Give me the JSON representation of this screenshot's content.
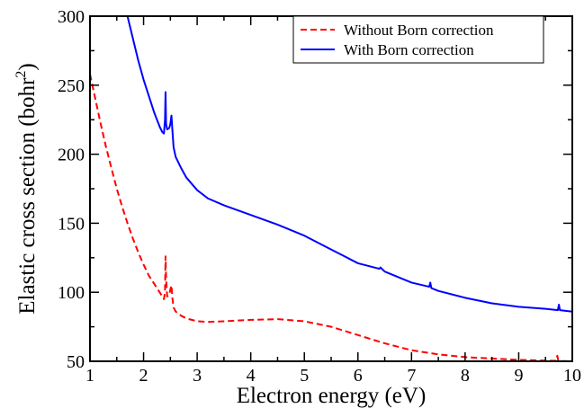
{
  "chart_data": {
    "type": "line",
    "xlabel": "Electron energy (eV)",
    "ylabel_main": "Elastic cross section (bohr",
    "ylabel_sup": "2",
    "ylabel_close": ")",
    "xlim": [
      1,
      10
    ],
    "ylim": [
      50,
      300
    ],
    "xticks": [
      1,
      2,
      3,
      4,
      5,
      6,
      7,
      8,
      9,
      10
    ],
    "yticks": [
      50,
      100,
      150,
      200,
      250,
      300
    ],
    "grid": false,
    "legend_position": "top-right",
    "series": [
      {
        "name": "Without Born correction",
        "color": "#ff0000",
        "style": "dashed",
        "x": [
          1.0,
          1.1,
          1.2,
          1.3,
          1.4,
          1.5,
          1.6,
          1.7,
          1.8,
          1.9,
          2.0,
          2.1,
          2.2,
          2.3,
          2.35,
          2.38,
          2.4,
          2.41,
          2.42,
          2.44,
          2.48,
          2.5,
          2.52,
          2.54,
          2.56,
          2.6,
          2.7,
          2.8,
          3.0,
          3.2,
          3.5,
          4.0,
          4.5,
          5.0,
          5.5,
          6.0,
          6.5,
          7.0,
          7.5,
          8.0,
          8.5,
          9.0,
          9.5,
          9.7,
          9.72,
          9.74,
          9.8,
          10.0
        ],
        "y": [
          258,
          240,
          222,
          205,
          190,
          175,
          162,
          150,
          139,
          129,
          120,
          112,
          106,
          100,
          97,
          95,
          100,
          126,
          110,
          97,
          98,
          102,
          105,
          95,
          89,
          86,
          83,
          81,
          79,
          78.5,
          79,
          80,
          80.5,
          79,
          75,
          69,
          63,
          58,
          55,
          53,
          52,
          51,
          50.5,
          50.3,
          54,
          50.3,
          50.2,
          50
        ]
      },
      {
        "name": "With Born correction",
        "color": "#0000ff",
        "style": "solid",
        "x": [
          1.7,
          1.8,
          1.9,
          2.0,
          2.1,
          2.2,
          2.3,
          2.35,
          2.38,
          2.4,
          2.41,
          2.42,
          2.44,
          2.48,
          2.5,
          2.52,
          2.54,
          2.56,
          2.6,
          2.7,
          2.8,
          3.0,
          3.2,
          3.5,
          4.0,
          4.5,
          5.0,
          5.5,
          6.0,
          6.4,
          6.42,
          6.5,
          7.0,
          7.33,
          7.35,
          7.37,
          7.5,
          8.0,
          8.5,
          9.0,
          9.5,
          9.73,
          9.75,
          9.77,
          10.0
        ],
        "y": [
          300,
          284,
          268,
          254,
          242,
          230,
          220,
          216,
          215,
          225,
          245,
          222,
          218,
          219,
          222,
          228,
          216,
          205,
          198,
          190,
          183,
          174,
          168,
          163,
          156,
          149,
          141,
          131,
          121,
          117,
          118,
          115,
          107,
          104,
          107,
          103,
          101,
          96,
          92,
          89.5,
          88,
          87,
          91,
          87,
          86
        ]
      }
    ]
  }
}
